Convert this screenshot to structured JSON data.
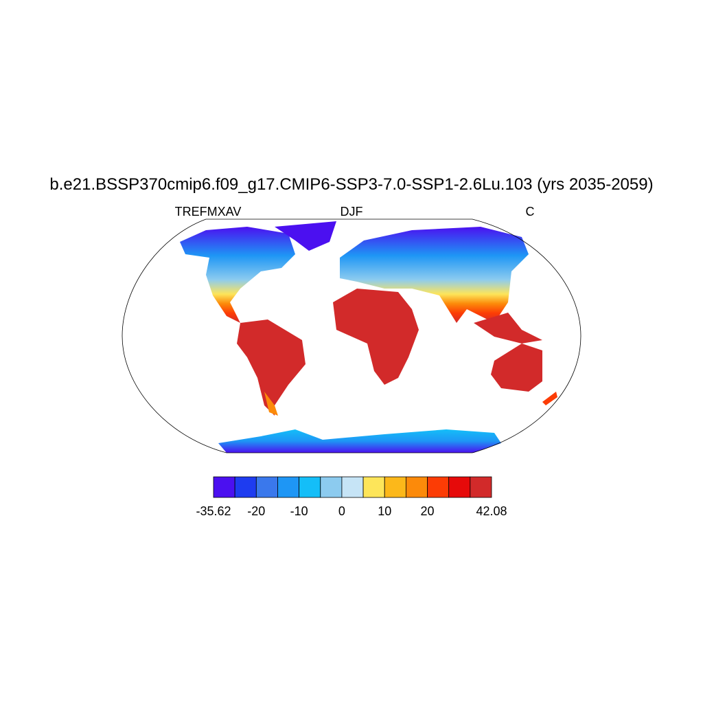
{
  "title": "b.e21.BSSP370cmip6.f09_g17.CMIP6-SSP3-7.0-SSP1-2.6Lu.103 (yrs 2035-2059)",
  "left_string": "TREFMXAV",
  "center_string": "DJF",
  "right_string": "C",
  "colorbar": {
    "colors": [
      "#4b10f0",
      "#1e3cf0",
      "#3a78ec",
      "#1e96f5",
      "#14bef8",
      "#8ccbef",
      "#c6e4f6",
      "#fde55a",
      "#fcb81a",
      "#fc8a0a",
      "#fc3c05",
      "#e60a0a",
      "#d22a2a"
    ],
    "levels": [
      -35.62,
      -25,
      -20,
      -15,
      -10,
      -5,
      0,
      5,
      10,
      15,
      20,
      25,
      30,
      42.08
    ],
    "ticks": [
      -35.62,
      -20,
      -10,
      0,
      10,
      20,
      42.08
    ]
  }
}
